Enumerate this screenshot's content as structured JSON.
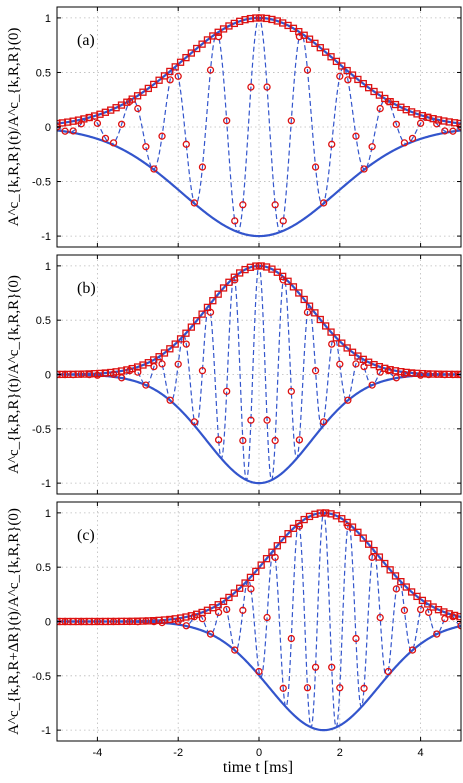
{
  "chart_data": [
    {
      "panel_label": "(a)",
      "type": "line",
      "ylabel": "A^c_{k,R,R}(t)/A^c_{k,R,R}(0)",
      "xlim": [
        -5,
        5
      ],
      "ylim": [
        -1.1,
        1.1
      ],
      "xticks": [
        -4,
        -2,
        0,
        2,
        4
      ],
      "yticks": [
        -1,
        -0.5,
        0,
        0.5,
        1
      ],
      "ytick_labels": [
        "-1",
        "-0.5",
        "0",
        "0.5",
        "1"
      ],
      "grid": true,
      "series": [
        {
          "role": "envelope_upper",
          "style": "solid",
          "color": "#3355cc",
          "x": [
            -5,
            -4.5,
            -4,
            -3.5,
            -3,
            -2.5,
            -2,
            -1.5,
            -1,
            -0.5,
            0,
            0.5,
            1,
            1.5,
            2,
            2.5,
            3,
            3.5,
            4,
            4.5,
            5
          ],
          "values": [
            0.11,
            0.16,
            0.23,
            0.3,
            0.4,
            0.51,
            0.63,
            0.75,
            0.87,
            0.96,
            1.0,
            0.96,
            0.87,
            0.75,
            0.63,
            0.51,
            0.4,
            0.3,
            0.23,
            0.16,
            0.11
          ]
        },
        {
          "role": "envelope_lower",
          "style": "solid",
          "color": "#3355cc",
          "x": [
            -5,
            -4.5,
            -4,
            -3.5,
            -3,
            -2.5,
            -2,
            -1.5,
            -1,
            -0.5,
            0,
            0.5,
            1,
            1.5,
            2,
            2.5,
            3,
            3.5,
            4,
            4.5,
            5
          ],
          "values": [
            -0.11,
            -0.16,
            -0.23,
            -0.3,
            -0.4,
            -0.51,
            -0.63,
            -0.75,
            -0.87,
            -0.96,
            -1.0,
            -0.96,
            -0.87,
            -0.75,
            -0.63,
            -0.51,
            -0.4,
            -0.3,
            -0.23,
            -0.16,
            -0.11
          ]
        },
        {
          "role": "signal",
          "style": "dashed",
          "color": "#3355cc",
          "marker": "circle",
          "marker_color": "#dd1111",
          "sample_step": 0.2,
          "params": {
            "kind": "gauss",
            "t0": 0,
            "sigma": 1.9,
            "freq": 0.95,
            "offset": 0.0
          }
        },
        {
          "role": "abs_envelope",
          "style": "markers",
          "marker": "square",
          "marker_color": "#dd1111",
          "sample_step": 0.133,
          "params": {
            "kind": "gauss",
            "t0": 0,
            "sigma": 1.9,
            "offset": 0.0
          }
        }
      ]
    },
    {
      "panel_label": "(b)",
      "type": "line",
      "ylabel": "A^c_{k,R,R}(t)/A^c_{k,R,R}(0)",
      "xlim": [
        -5,
        5
      ],
      "ylim": [
        -1.1,
        1.1
      ],
      "xticks": [
        -4,
        -2,
        0,
        2,
        4
      ],
      "yticks": [
        -1,
        -0.5,
        0,
        0.5,
        1
      ],
      "ytick_labels": [
        "-1",
        "-0.5",
        "0",
        "0.5",
        "1"
      ],
      "grid": true,
      "series": [
        {
          "role": "envelope_upper",
          "style": "solid",
          "color": "#3355cc",
          "x": [
            -5,
            -4.5,
            -4,
            -3.5,
            -3,
            -2.5,
            -2,
            -1.5,
            -1,
            -0.5,
            0,
            0.5,
            1,
            1.5,
            2,
            2.5,
            3,
            3.5,
            4,
            4.5,
            5
          ],
          "values": [
            0.0,
            0.0,
            0.01,
            0.02,
            0.05,
            0.13,
            0.28,
            0.49,
            0.73,
            0.93,
            1.0,
            0.93,
            0.73,
            0.49,
            0.28,
            0.13,
            0.05,
            0.02,
            0.01,
            0.0,
            0.0
          ]
        },
        {
          "role": "envelope_lower",
          "style": "solid",
          "color": "#3355cc",
          "x": [
            -5,
            -4.5,
            -4,
            -3.5,
            -3,
            -2.5,
            -2,
            -1.5,
            -1,
            -0.5,
            0,
            0.5,
            1,
            1.5,
            2,
            2.5,
            3,
            3.5,
            4,
            4.5,
            5
          ],
          "values": [
            0.0,
            0.0,
            -0.01,
            -0.02,
            -0.05,
            -0.13,
            -0.28,
            -0.49,
            -0.73,
            -0.93,
            -1.0,
            -0.93,
            -0.73,
            -0.49,
            -0.28,
            -0.13,
            -0.05,
            -0.02,
            -0.01,
            0.0,
            0.0
          ]
        },
        {
          "role": "signal",
          "style": "dashed",
          "color": "#3355cc",
          "marker": "circle",
          "marker_color": "#dd1111",
          "sample_step": 0.2,
          "params": {
            "kind": "gauss",
            "t0": 0,
            "sigma": 1.3,
            "freq": 1.6,
            "offset": 0.0
          }
        },
        {
          "role": "abs_envelope",
          "style": "markers",
          "marker": "square",
          "marker_color": "#dd1111",
          "sample_step": 0.133,
          "params": {
            "kind": "gauss",
            "t0": 0,
            "sigma": 1.3,
            "offset": 0.0
          }
        }
      ]
    },
    {
      "panel_label": "(c)",
      "type": "line",
      "ylabel": "A^c_{k,R,R+ΔR}(t)/A^c_{k,R,R}(0)",
      "xlim": [
        -5,
        5
      ],
      "ylim": [
        -1.1,
        1.1
      ],
      "xticks": [
        -4,
        -2,
        0,
        2,
        4
      ],
      "yticks": [
        -1,
        -0.5,
        0,
        0.5,
        1
      ],
      "ytick_labels": [
        "-1",
        "-0.5",
        "0",
        "0.5",
        "1"
      ],
      "grid": true,
      "series": [
        {
          "role": "envelope_upper",
          "style": "solid",
          "color": "#3355cc",
          "x": [
            -5,
            -4.5,
            -4,
            -3.5,
            -3,
            -2.5,
            -2,
            -1.5,
            -1,
            -0.5,
            0,
            0.5,
            1,
            1.5,
            2,
            2.5,
            3,
            3.5,
            4,
            4.5,
            5
          ],
          "values": [
            0.0,
            0.0,
            0.0,
            0.0,
            0.01,
            0.02,
            0.04,
            0.08,
            0.16,
            0.28,
            0.44,
            0.62,
            0.81,
            0.95,
            1.0,
            0.93,
            0.78,
            0.58,
            0.39,
            0.24,
            0.13
          ]
        },
        {
          "role": "envelope_lower",
          "style": "solid",
          "color": "#3355cc",
          "x": [
            -5,
            -4.5,
            -4,
            -3.5,
            -3,
            -2.5,
            -2,
            -1.5,
            -1,
            -0.5,
            0,
            0.5,
            1,
            1.5,
            2,
            2.5,
            3,
            3.5,
            4,
            4.5,
            5
          ],
          "values": [
            0.0,
            0.0,
            0.0,
            0.0,
            -0.01,
            -0.02,
            -0.04,
            -0.08,
            -0.16,
            -0.28,
            -0.44,
            -0.62,
            -0.81,
            -0.95,
            -1.0,
            -0.93,
            -0.78,
            -0.58,
            -0.39,
            -0.24,
            -0.13
          ]
        },
        {
          "role": "signal",
          "style": "dashed",
          "color": "#3355cc",
          "marker": "circle",
          "marker_color": "#dd1111",
          "sample_step": 0.2,
          "params": {
            "kind": "gauss",
            "t0": 1.6,
            "sigma": 1.35,
            "freq": 1.6,
            "offset": 0.0
          }
        },
        {
          "role": "abs_envelope",
          "style": "markers",
          "marker": "square",
          "marker_color": "#dd1111",
          "sample_step": 0.133,
          "params": {
            "kind": "gauss",
            "t0": 1.6,
            "sigma": 1.35,
            "offset": 0.0
          }
        }
      ]
    }
  ],
  "xlabel": "time t [ms]",
  "xtick_labels": [
    "-4",
    "-2",
    "0",
    "2",
    "4"
  ]
}
